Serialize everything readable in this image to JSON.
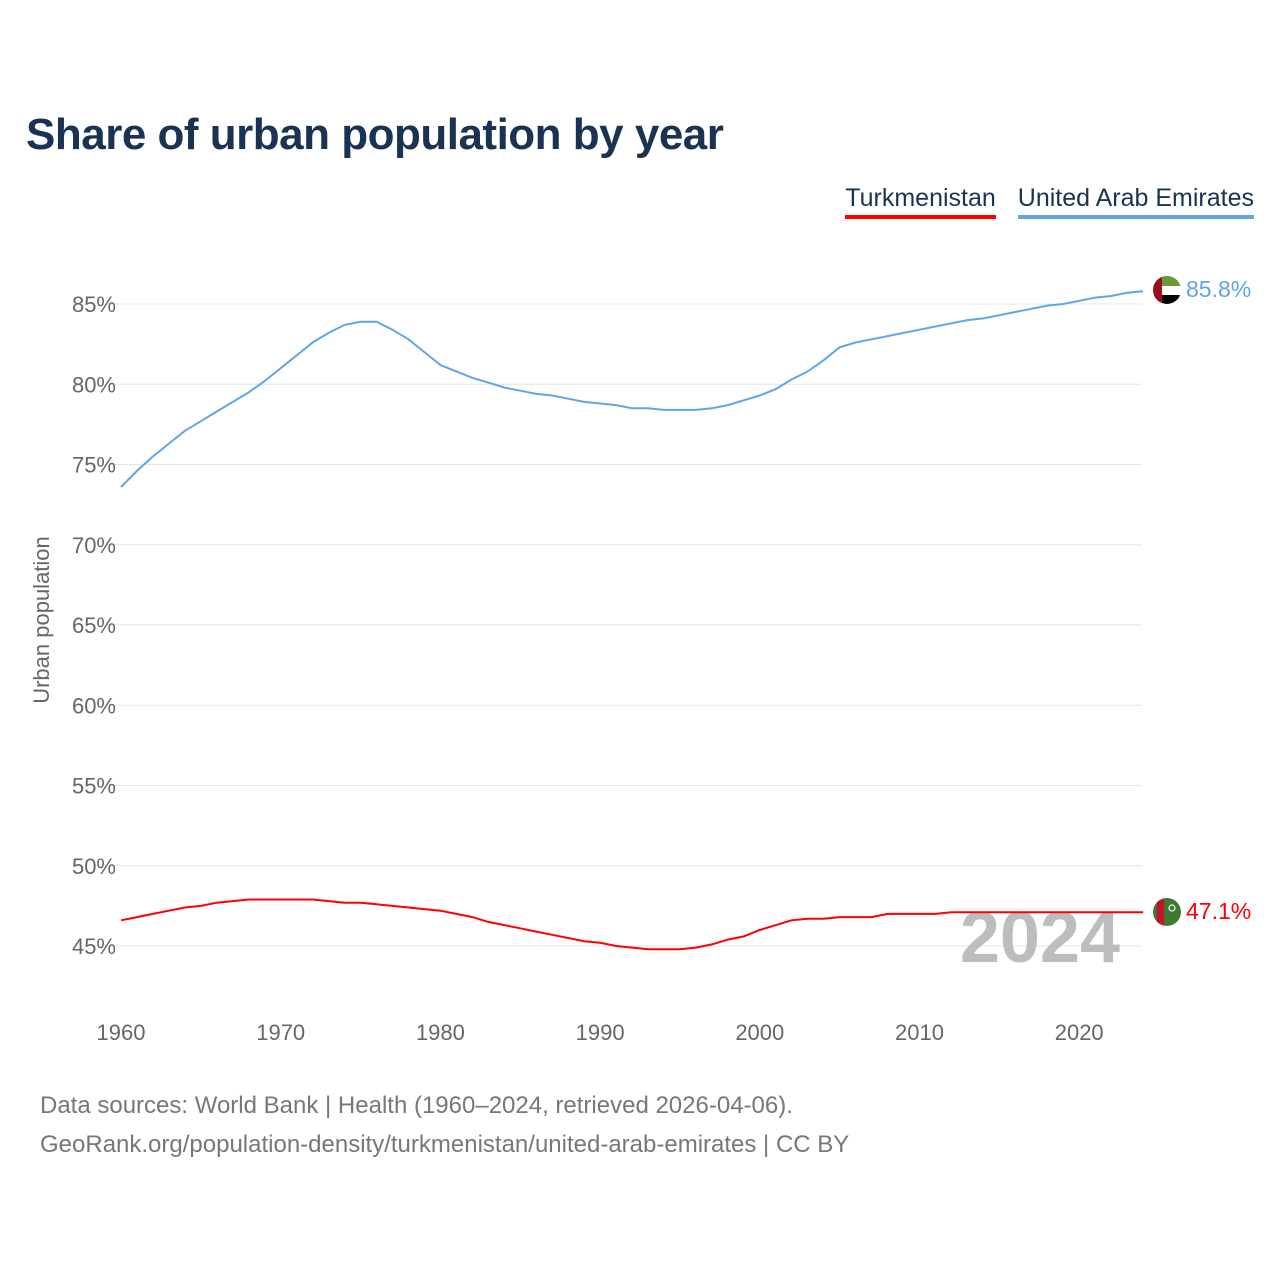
{
  "title": "Share of urban population by year",
  "chart_data": {
    "type": "line",
    "title": "Share of urban population by year",
    "xlabel": "",
    "ylabel": "Urban population",
    "xlim": [
      1960,
      2024
    ],
    "ylim": [
      42,
      87
    ],
    "x_ticks": [
      "1960",
      "1970",
      "1980",
      "1990",
      "2000",
      "2010",
      "2020"
    ],
    "y_ticks": [
      "45%",
      "50%",
      "55%",
      "60%",
      "65%",
      "70%",
      "75%",
      "80%",
      "85%"
    ],
    "y_tick_values": [
      45,
      50,
      55,
      60,
      65,
      70,
      75,
      80,
      85
    ],
    "x_tick_values": [
      1960,
      1970,
      1980,
      1990,
      2000,
      2010,
      2020
    ],
    "grid": true,
    "legend_placement": "top-right",
    "start_year": 1960,
    "year_label": "2024",
    "series": [
      {
        "name": "Turkmenistan",
        "color": "#ff0000",
        "end_label": "47.1%",
        "values": [
          46.6,
          46.8,
          47.0,
          47.2,
          47.4,
          47.5,
          47.7,
          47.8,
          47.9,
          47.9,
          47.9,
          47.9,
          47.9,
          47.8,
          47.7,
          47.7,
          47.6,
          47.5,
          47.4,
          47.3,
          47.2,
          47.0,
          46.8,
          46.5,
          46.3,
          46.1,
          45.9,
          45.7,
          45.5,
          45.3,
          45.2,
          45.0,
          44.9,
          44.8,
          44.8,
          44.8,
          44.9,
          45.1,
          45.4,
          45.6,
          46.0,
          46.3,
          46.6,
          46.7,
          46.7,
          46.8,
          46.8,
          46.8,
          47.0,
          47.0,
          47.0,
          47.0,
          47.1,
          47.1,
          47.1,
          47.1,
          47.1,
          47.1,
          47.1,
          47.1,
          47.1,
          47.1,
          47.1,
          47.1,
          47.1
        ]
      },
      {
        "name": "United Arab Emirates",
        "color": "#5ea5ea",
        "end_label": "85.8%",
        "values": [
          73.6,
          74.6,
          75.5,
          76.3,
          77.1,
          77.7,
          78.3,
          78.9,
          79.5,
          80.2,
          81.0,
          81.8,
          82.6,
          83.2,
          83.7,
          83.9,
          83.9,
          83.4,
          82.8,
          82.0,
          81.2,
          80.8,
          80.4,
          80.1,
          79.8,
          79.6,
          79.4,
          79.3,
          79.1,
          78.9,
          78.8,
          78.7,
          78.5,
          78.5,
          78.4,
          78.4,
          78.4,
          78.5,
          78.7,
          79.0,
          79.3,
          79.7,
          80.3,
          80.8,
          81.5,
          82.3,
          82.6,
          82.8,
          83.0,
          83.2,
          83.4,
          83.6,
          83.8,
          84.0,
          84.1,
          84.3,
          84.5,
          84.7,
          84.9,
          85.0,
          85.2,
          85.4,
          85.5,
          85.7,
          85.8
        ]
      }
    ]
  },
  "footer": {
    "line1": "Data sources: World Bank | Health (1960–2024, retrieved 2026-04-06).",
    "line2": "GeoRank.org/population-density/turkmenistan/united-arab-emirates | CC BY"
  }
}
